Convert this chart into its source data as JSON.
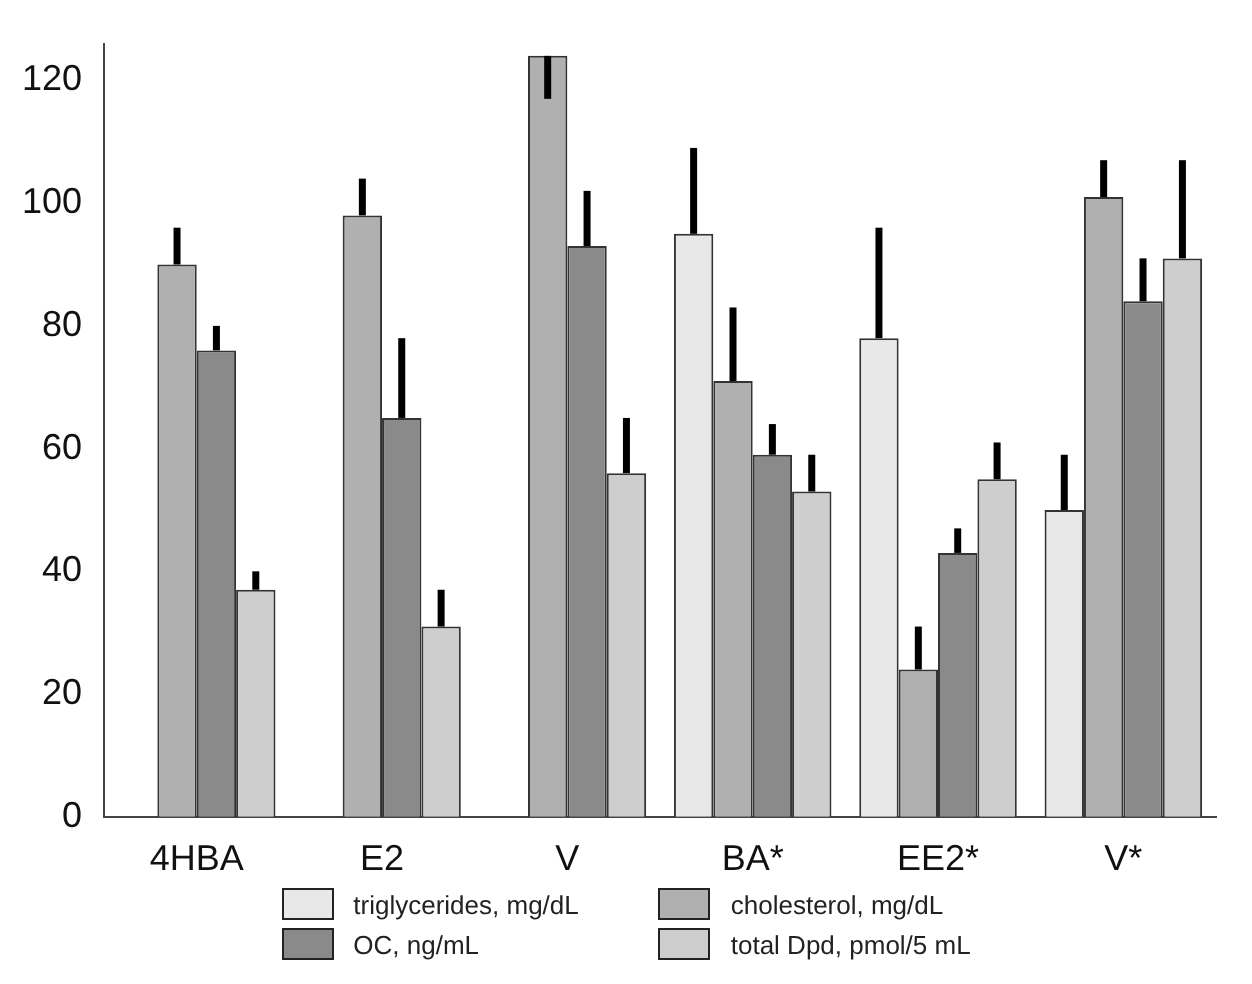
{
  "chart_data": {
    "type": "bar",
    "categories": [
      "4HBA",
      "E2",
      "V",
      "BA*",
      "EE2*",
      "V*"
    ],
    "series": [
      {
        "name": "triglycerides, mg/dL",
        "color": "#e8e8e8",
        "values": [
          null,
          null,
          null,
          95,
          78,
          50
        ],
        "errors": [
          null,
          null,
          null,
          [
            95,
            109
          ],
          [
            78,
            96
          ],
          [
            50,
            59
          ]
        ]
      },
      {
        "name": "cholesterol, mg/dL",
        "color": "#b0b0b0",
        "values": [
          90,
          98,
          124,
          71,
          24,
          101
        ],
        "errors": [
          [
            90,
            96
          ],
          [
            98,
            104
          ],
          [
            117,
            124
          ],
          [
            71,
            83
          ],
          [
            24,
            31
          ],
          [
            101,
            107
          ]
        ]
      },
      {
        "name": "OC, ng/mL",
        "color": "#8a8a8a",
        "values": [
          76,
          65,
          93,
          59,
          43,
          84
        ],
        "errors": [
          [
            76,
            80
          ],
          [
            65,
            78
          ],
          [
            93,
            102
          ],
          [
            59,
            64
          ],
          [
            43,
            47
          ],
          [
            84,
            91
          ]
        ]
      },
      {
        "name": "total Dpd, pmol/5 mL",
        "color": "#cecece",
        "values": [
          37,
          31,
          56,
          53,
          55,
          91
        ],
        "errors": [
          [
            37,
            40
          ],
          [
            31,
            37
          ],
          [
            56,
            65
          ],
          [
            53,
            59
          ],
          [
            55,
            61
          ],
          [
            91,
            107
          ]
        ]
      }
    ],
    "ylim": [
      0,
      126
    ],
    "yticks": [
      0,
      20,
      40,
      60,
      80,
      100,
      120
    ],
    "grid": false,
    "legend": "bottom"
  }
}
